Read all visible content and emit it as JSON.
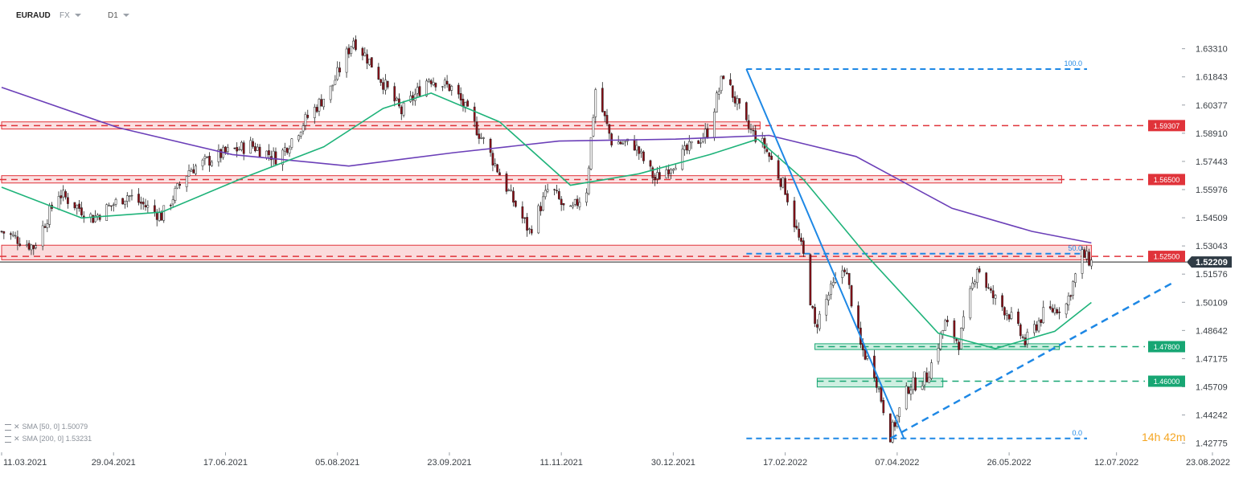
{
  "header": {
    "symbol": "EURAUD",
    "market": "FX",
    "timeframe": "D1"
  },
  "legend": [
    {
      "label": "SMA [50, 0] 1.50079"
    },
    {
      "label": "SMA [200, 0] 1.53231"
    }
  ],
  "countdown": {
    "hours": "14",
    "h_unit": "h",
    "minutes": "42",
    "m_unit": "m"
  },
  "colors": {
    "bull": "#ffffff",
    "bear": "#8b0d16",
    "wick": "#222222",
    "sma50": "#1fb37a",
    "sma200": "#6b3fb8",
    "resistance": "#e0333a",
    "support": "#17a673",
    "fib": "#1e88e5",
    "price_tag": "#2f3b45"
  },
  "chart_data": {
    "type": "candlestick",
    "symbol": "EURAUD",
    "timeframe": "D1",
    "ylim": [
      1.423,
      1.648
    ],
    "y_ticks": [
      "1.63310",
      "1.61843",
      "1.60377",
      "1.58910",
      "1.57443",
      "1.55976",
      "1.54509",
      "1.53043",
      "1.51576",
      "1.50109",
      "1.48642",
      "1.47175",
      "1.45709",
      "1.44242",
      "1.42775"
    ],
    "x_ticks": [
      "11.03.2021",
      "29.04.2021",
      "17.06.2021",
      "05.08.2021",
      "23.09.2021",
      "11.11.2021",
      "30.12.2021",
      "17.02.2022",
      "07.04.2022",
      "26.05.2022",
      "12.07.2022",
      "23.08.2022"
    ],
    "last_price": "1.52209",
    "price_path": [
      {
        "date": "2021-03-11",
        "price": 1.538
      },
      {
        "date": "2021-03-25",
        "price": 1.53
      },
      {
        "date": "2021-04-05",
        "price": 1.558
      },
      {
        "date": "2021-04-20",
        "price": 1.545
      },
      {
        "date": "2021-05-05",
        "price": 1.557
      },
      {
        "date": "2021-05-20",
        "price": 1.546
      },
      {
        "date": "2021-06-01",
        "price": 1.57
      },
      {
        "date": "2021-06-15",
        "price": 1.578
      },
      {
        "date": "2021-06-28",
        "price": 1.583
      },
      {
        "date": "2021-07-10",
        "price": 1.576
      },
      {
        "date": "2021-07-22",
        "price": 1.596
      },
      {
        "date": "2021-08-02",
        "price": 1.612
      },
      {
        "date": "2021-08-12",
        "price": 1.638
      },
      {
        "date": "2021-08-20",
        "price": 1.625
      },
      {
        "date": "2021-09-02",
        "price": 1.6
      },
      {
        "date": "2021-09-14",
        "price": 1.618
      },
      {
        "date": "2021-09-25",
        "price": 1.612
      },
      {
        "date": "2021-10-08",
        "price": 1.585
      },
      {
        "date": "2021-10-20",
        "price": 1.556
      },
      {
        "date": "2021-10-28",
        "price": 1.538
      },
      {
        "date": "2021-11-06",
        "price": 1.562
      },
      {
        "date": "2021-11-14",
        "price": 1.546
      },
      {
        "date": "2021-11-22",
        "price": 1.56
      },
      {
        "date": "2021-11-26",
        "price": 1.612
      },
      {
        "date": "2021-12-03",
        "price": 1.585
      },
      {
        "date": "2021-12-13",
        "price": 1.583
      },
      {
        "date": "2021-12-22",
        "price": 1.565
      },
      {
        "date": "2022-01-05",
        "price": 1.58
      },
      {
        "date": "2022-01-14",
        "price": 1.59
      },
      {
        "date": "2022-01-21",
        "price": 1.62
      },
      {
        "date": "2022-01-31",
        "price": 1.593
      },
      {
        "date": "2022-02-08",
        "price": 1.582
      },
      {
        "date": "2022-02-17",
        "price": 1.56
      },
      {
        "date": "2022-02-25",
        "price": 1.525
      },
      {
        "date": "2022-03-02",
        "price": 1.488
      },
      {
        "date": "2022-03-08",
        "price": 1.505
      },
      {
        "date": "2022-03-15",
        "price": 1.52
      },
      {
        "date": "2022-03-22",
        "price": 1.478
      },
      {
        "date": "2022-03-28",
        "price": 1.465
      },
      {
        "date": "2022-04-04",
        "price": 1.432
      },
      {
        "date": "2022-04-12",
        "price": 1.457
      },
      {
        "date": "2022-04-20",
        "price": 1.462
      },
      {
        "date": "2022-04-28",
        "price": 1.49
      },
      {
        "date": "2022-05-04",
        "price": 1.48
      },
      {
        "date": "2022-05-12",
        "price": 1.52
      },
      {
        "date": "2022-05-18",
        "price": 1.505
      },
      {
        "date": "2022-05-26",
        "price": 1.495
      },
      {
        "date": "2022-06-02",
        "price": 1.48
      },
      {
        "date": "2022-06-10",
        "price": 1.495
      },
      {
        "date": "2022-06-20",
        "price": 1.5
      },
      {
        "date": "2022-06-27",
        "price": 1.526
      },
      {
        "date": "2022-07-01",
        "price": 1.522
      }
    ],
    "sma50": [
      {
        "date": "2021-03-11",
        "price": 1.561
      },
      {
        "date": "2021-04-15",
        "price": 1.545
      },
      {
        "date": "2021-05-20",
        "price": 1.548
      },
      {
        "date": "2021-06-25",
        "price": 1.566
      },
      {
        "date": "2021-07-30",
        "price": 1.582
      },
      {
        "date": "2021-08-25",
        "price": 1.602
      },
      {
        "date": "2021-09-15",
        "price": 1.61
      },
      {
        "date": "2021-10-15",
        "price": 1.595
      },
      {
        "date": "2021-11-15",
        "price": 1.562
      },
      {
        "date": "2021-12-15",
        "price": 1.568
      },
      {
        "date": "2022-01-15",
        "price": 1.578
      },
      {
        "date": "2022-02-05",
        "price": 1.586
      },
      {
        "date": "2022-02-25",
        "price": 1.565
      },
      {
        "date": "2022-03-25",
        "price": 1.525
      },
      {
        "date": "2022-04-25",
        "price": 1.485
      },
      {
        "date": "2022-05-20",
        "price": 1.477
      },
      {
        "date": "2022-06-15",
        "price": 1.486
      },
      {
        "date": "2022-07-01",
        "price": 1.501
      }
    ],
    "sma200": [
      {
        "date": "2021-03-11",
        "price": 1.613
      },
      {
        "date": "2021-05-01",
        "price": 1.592
      },
      {
        "date": "2021-06-20",
        "price": 1.578
      },
      {
        "date": "2021-08-10",
        "price": 1.572
      },
      {
        "date": "2021-09-25",
        "price": 1.579
      },
      {
        "date": "2021-11-10",
        "price": 1.585
      },
      {
        "date": "2021-12-31",
        "price": 1.586
      },
      {
        "date": "2022-02-10",
        "price": 1.588
      },
      {
        "date": "2022-03-20",
        "price": 1.577
      },
      {
        "date": "2022-05-01",
        "price": 1.55
      },
      {
        "date": "2022-06-05",
        "price": 1.538
      },
      {
        "date": "2022-07-01",
        "price": 1.532
      }
    ],
    "levels": [
      {
        "label": "1.59307",
        "price": 1.59307,
        "kind": "resistance"
      },
      {
        "label": "1.56500",
        "price": 1.565,
        "kind": "resistance"
      },
      {
        "label": "1.52500",
        "price": 1.525,
        "kind": "resistance"
      },
      {
        "label": "1.47800",
        "price": 1.478,
        "kind": "support"
      },
      {
        "label": "1.46000",
        "price": 1.46,
        "kind": "support"
      }
    ],
    "fibonacci": [
      {
        "label": "100.0",
        "price": 1.6225
      },
      {
        "label": "50.0",
        "price": 1.5264
      },
      {
        "label": "0.0",
        "price": 1.4302
      }
    ]
  }
}
